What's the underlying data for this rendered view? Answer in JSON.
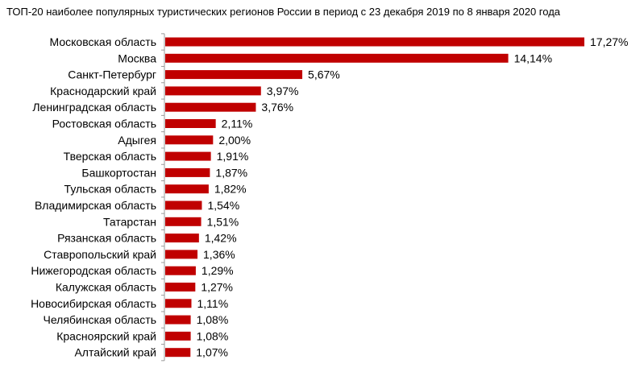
{
  "chart_data": {
    "type": "bar",
    "orientation": "horizontal",
    "title": "ТОП-20 наиболее популярных туристических регионов России в период с 23 декабря 2019 по 8 января 2020 года",
    "categories": [
      "Московская область",
      "Москва",
      "Санкт-Петербург",
      "Краснодарский край",
      "Ленинградская область",
      "Ростовская область",
      "Адыгея",
      "Тверская область",
      "Башкортостан",
      "Тульская область",
      "Владимирская область",
      "Татарстан",
      "Рязанская область",
      "Ставропольский край",
      "Нижегородская область",
      "Калужская область",
      "Новосибирская область",
      "Челябинская область",
      "Красноярский край",
      "Алтайский край"
    ],
    "values": [
      17.27,
      14.14,
      5.67,
      3.97,
      3.76,
      2.11,
      2.0,
      1.91,
      1.87,
      1.82,
      1.54,
      1.51,
      1.42,
      1.36,
      1.29,
      1.27,
      1.11,
      1.08,
      1.08,
      1.07
    ],
    "value_labels": [
      "17,27%",
      "14,14%",
      "5,67%",
      "3,97%",
      "3,76%",
      "2,11%",
      "2,00%",
      "1,91%",
      "1,87%",
      "1,82%",
      "1,54%",
      "1,51%",
      "1,42%",
      "1,36%",
      "1,29%",
      "1,27%",
      "1,11%",
      "1,08%",
      "1,08%",
      "1,07%"
    ],
    "bar_color": "#c00000",
    "axis_color": "#999999",
    "xlim": [
      0,
      17.27
    ],
    "grid": false,
    "legend": "none",
    "xlabel": "",
    "ylabel": ""
  }
}
